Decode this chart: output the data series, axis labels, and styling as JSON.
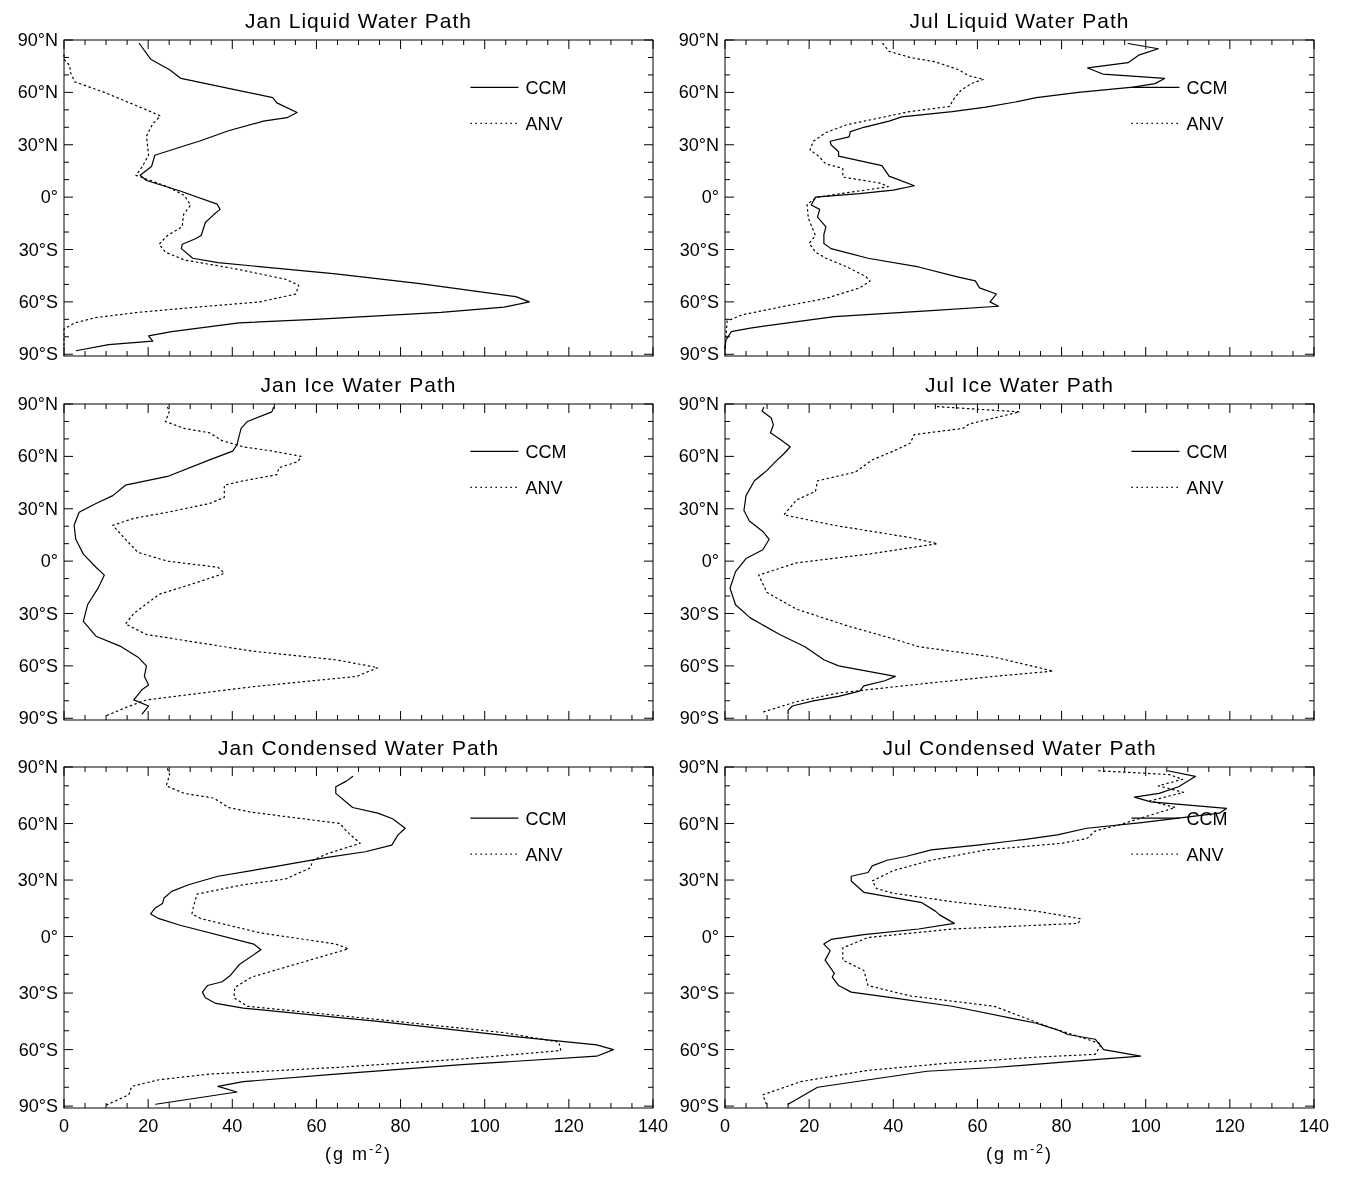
{
  "chart_data": [
    {
      "type": "line",
      "title": "Jan Liquid Water Path",
      "xlim": [
        0,
        140
      ],
      "ylim": [
        -91,
        90
      ],
      "tick_labels": "y",
      "legend": "top right",
      "xticks": [
        0,
        {
          "value": 5,
          "label": null
        },
        {
          "value": 10,
          "label": null
        },
        {
          "value": 15,
          "label": null
        },
        20,
        {
          "value": 25,
          "label": null
        },
        {
          "value": 30,
          "label": null
        },
        {
          "value": 35,
          "label": null
        },
        40,
        {
          "value": 45,
          "label": null
        },
        {
          "value": 50,
          "label": null
        },
        {
          "value": 55,
          "label": null
        },
        60,
        {
          "value": 65,
          "label": null
        },
        {
          "value": 70,
          "label": null
        },
        {
          "value": 75,
          "label": null
        },
        80,
        {
          "value": 85,
          "label": null
        },
        {
          "value": 90,
          "label": null
        },
        {
          "value": 95,
          "label": null
        },
        100,
        {
          "value": 105,
          "label": null
        },
        {
          "value": 110,
          "label": null
        },
        {
          "value": 115,
          "label": null
        },
        120,
        {
          "value": 125,
          "label": null
        },
        {
          "value": 130,
          "label": null
        },
        {
          "value": 135,
          "label": null
        },
        140
      ],
      "yticks": [
        {
          "value": -90,
          "label": "90°S"
        },
        {
          "value": -80,
          "label": null
        },
        {
          "value": -70,
          "label": null
        },
        {
          "value": -60,
          "label": "60°S"
        },
        {
          "value": -50,
          "label": null
        },
        {
          "value": -40,
          "label": null
        },
        {
          "value": -30,
          "label": "30°S"
        },
        {
          "value": -20,
          "label": null
        },
        {
          "value": -10,
          "label": null
        },
        {
          "value": 0,
          "label": "0°"
        },
        {
          "value": 10,
          "label": null
        },
        {
          "value": 20,
          "label": null
        },
        {
          "value": 30,
          "label": "30°N"
        },
        {
          "value": 40,
          "label": null
        },
        {
          "value": 50,
          "label": null
        },
        {
          "value": 60,
          "label": "60°N"
        },
        {
          "value": 70,
          "label": null
        },
        {
          "value": 80,
          "label": null
        },
        {
          "value": 90,
          "label": "90°N"
        }
      ],
      "series": [
        {
          "name": "CCM",
          "color": "#000000",
          "line_style": "solid",
          "x": [
            17.9,
            20.6,
            25.1,
            27.8,
            49.6,
            50.6,
            55.4,
            53,
            47.4,
            39.1,
            32.1,
            29.4,
            21.6,
            20.8,
            18.1,
            19.6,
            27.6,
            36.4,
            37.1,
            35.6,
            33.6,
            32.6,
            31.1,
            28.1,
            27.9,
            30.6,
            36.6,
            64.6,
            84.6,
            107.4,
            110.6,
            104.6,
            89.6,
            59.6,
            41.6,
            25.6,
            20.1,
            21.1,
            10.6,
            2.9
          ],
          "values": [
            88,
            79,
            73,
            68,
            57,
            54,
            48.5,
            45.5,
            43.5,
            38,
            32,
            30,
            24,
            17.5,
            12.5,
            9.5,
            3.5,
            -4,
            -7,
            -10,
            -14.5,
            -22,
            -24,
            -27,
            -29.5,
            -35,
            -37.5,
            -44,
            -49.5,
            -57,
            -60,
            -63,
            -66,
            -70,
            -72,
            -77,
            -79.5,
            -82.5,
            -84.5,
            -88
          ]
        },
        {
          "name": "ANV",
          "color": "#000000",
          "line_style": "dotted",
          "x": [
            0,
            0,
            1.3,
            1.6,
            2.6,
            9.6,
            19.1,
            22.9,
            21.1,
            19.6,
            20.1,
            18.6,
            17.1,
            24.6,
            28.6,
            30.1,
            28.4,
            28.1,
            24.6,
            22.6,
            24.1,
            28.6,
            40.6,
            52.6,
            55.8,
            55.1,
            46.6,
            31.6,
            17.6,
            7.6,
            2.6,
            0,
            0
          ],
          "values": [
            81.5,
            79,
            75.5,
            71,
            66,
            60,
            50.5,
            46.5,
            42,
            35,
            24,
            17.5,
            12.5,
            6,
            1,
            -4.5,
            -10,
            -17,
            -22,
            -27,
            -31.5,
            -36,
            -41,
            -47,
            -50.5,
            -55.5,
            -60,
            -63,
            -66,
            -69,
            -72,
            -75.5,
            -86.5
          ]
        }
      ]
    },
    {
      "type": "line",
      "title": "Jul Liquid Water Path",
      "xlim": [
        0,
        140
      ],
      "ylim": [
        -91,
        90
      ],
      "tick_labels": "y",
      "legend": "top right",
      "xticks": [
        0,
        {
          "value": 5,
          "label": null
        },
        {
          "value": 10,
          "label": null
        },
        {
          "value": 15,
          "label": null
        },
        20,
        {
          "value": 25,
          "label": null
        },
        {
          "value": 30,
          "label": null
        },
        {
          "value": 35,
          "label": null
        },
        40,
        {
          "value": 45,
          "label": null
        },
        {
          "value": 50,
          "label": null
        },
        {
          "value": 55,
          "label": null
        },
        60,
        {
          "value": 65,
          "label": null
        },
        {
          "value": 70,
          "label": null
        },
        {
          "value": 75,
          "label": null
        },
        80,
        {
          "value": 85,
          "label": null
        },
        {
          "value": 90,
          "label": null
        },
        {
          "value": 95,
          "label": null
        },
        100,
        {
          "value": 105,
          "label": null
        },
        {
          "value": 110,
          "label": null
        },
        {
          "value": 115,
          "label": null
        },
        120,
        {
          "value": 125,
          "label": null
        },
        {
          "value": 130,
          "label": null
        },
        {
          "value": 135,
          "label": null
        },
        140
      ],
      "yticks": [
        {
          "value": -90,
          "label": "90°S"
        },
        {
          "value": -80,
          "label": null
        },
        {
          "value": -70,
          "label": null
        },
        {
          "value": -60,
          "label": "60°S"
        },
        {
          "value": -50,
          "label": null
        },
        {
          "value": -40,
          "label": null
        },
        {
          "value": -30,
          "label": "30°S"
        },
        {
          "value": -20,
          "label": null
        },
        {
          "value": -10,
          "label": null
        },
        {
          "value": 0,
          "label": "0°"
        },
        {
          "value": 10,
          "label": null
        },
        {
          "value": 20,
          "label": null
        },
        {
          "value": 30,
          "label": "30°N"
        },
        {
          "value": 40,
          "label": null
        },
        {
          "value": 50,
          "label": null
        },
        {
          "value": 60,
          "label": "60°N"
        },
        {
          "value": 70,
          "label": null
        },
        {
          "value": 80,
          "label": null
        },
        {
          "value": 90,
          "label": "90°N"
        }
      ],
      "series": [
        {
          "name": "CCM",
          "color": "#000000",
          "line_style": "solid",
          "x": [
            95.8,
            103,
            98.5,
            95.8,
            86.2,
            89.8,
            104.5,
            102.2,
            97,
            84,
            74,
            69,
            62,
            54,
            42,
            39,
            33,
            29.8,
            29.5,
            25,
            25.2,
            27,
            27,
            37.3,
            39,
            45,
            40,
            32,
            21.5,
            20.5,
            22.5,
            22,
            24,
            23.5,
            23.5,
            25.2,
            34,
            46,
            55,
            59.5,
            60.5,
            64.5,
            63,
            65,
            49,
            26,
            6,
            1.5,
            0.2,
            0
          ],
          "values": [
            88,
            85,
            81.5,
            77,
            74,
            70.5,
            68,
            65,
            63,
            60,
            57,
            54.5,
            51.5,
            49,
            46,
            43.5,
            40,
            37.5,
            34.5,
            32,
            30,
            26,
            23.5,
            18,
            12,
            6.5,
            4,
            2,
            0,
            -4.5,
            -7,
            -11.5,
            -17,
            -21.5,
            -26.5,
            -29.5,
            -35,
            -40,
            -45.5,
            -48,
            -52,
            -55.5,
            -60,
            -62.5,
            -65,
            -68.5,
            -75,
            -77,
            -82,
            -86.5
          ]
        },
        {
          "name": "ANV",
          "color": "#000000",
          "line_style": "dotted",
          "x": [
            37.5,
            39,
            44,
            50,
            55.5,
            58,
            61.5,
            58.5,
            56,
            54,
            53.5,
            44,
            29,
            24,
            21,
            20.2,
            22,
            24,
            28,
            28,
            37,
            38.8,
            29,
            22,
            19.5,
            19.8,
            21.5,
            20,
            21.5,
            24,
            29,
            33.5,
            34.5,
            32,
            24,
            13,
            4,
            0.5,
            0
          ],
          "values": [
            88,
            83.5,
            80,
            77.5,
            73,
            69.5,
            67.5,
            65,
            61,
            55,
            52,
            49,
            41.5,
            37,
            32,
            27,
            24,
            19,
            16.5,
            11.5,
            8,
            6,
            2.5,
            0,
            -4,
            -12,
            -22,
            -26.5,
            -31.5,
            -35,
            -40,
            -45.5,
            -48,
            -52,
            -58,
            -63,
            -67.5,
            -71,
            -86.5
          ]
        }
      ]
    },
    {
      "type": "line",
      "title": "Jan Ice Water Path",
      "xlim": [
        0,
        140
      ],
      "ylim": [
        -91,
        90
      ],
      "tick_labels": "y",
      "legend": "top right",
      "xticks": [
        0,
        {
          "value": 5,
          "label": null
        },
        {
          "value": 10,
          "label": null
        },
        {
          "value": 15,
          "label": null
        },
        20,
        {
          "value": 25,
          "label": null
        },
        {
          "value": 30,
          "label": null
        },
        {
          "value": 35,
          "label": null
        },
        40,
        {
          "value": 45,
          "label": null
        },
        {
          "value": 50,
          "label": null
        },
        {
          "value": 55,
          "label": null
        },
        60,
        {
          "value": 65,
          "label": null
        },
        {
          "value": 70,
          "label": null
        },
        {
          "value": 75,
          "label": null
        },
        80,
        {
          "value": 85,
          "label": null
        },
        {
          "value": 90,
          "label": null
        },
        {
          "value": 95,
          "label": null
        },
        100,
        {
          "value": 105,
          "label": null
        },
        {
          "value": 110,
          "label": null
        },
        {
          "value": 115,
          "label": null
        },
        120,
        {
          "value": 125,
          "label": null
        },
        {
          "value": 130,
          "label": null
        },
        {
          "value": 135,
          "label": null
        },
        140
      ],
      "yticks": [
        {
          "value": -90,
          "label": "90°S"
        },
        {
          "value": -80,
          "label": null
        },
        {
          "value": -70,
          "label": null
        },
        {
          "value": -60,
          "label": "60°S"
        },
        {
          "value": -50,
          "label": null
        },
        {
          "value": -40,
          "label": null
        },
        {
          "value": -30,
          "label": "30°S"
        },
        {
          "value": -20,
          "label": null
        },
        {
          "value": -10,
          "label": null
        },
        {
          "value": 0,
          "label": "0°"
        },
        {
          "value": 10,
          "label": null
        },
        {
          "value": 20,
          "label": null
        },
        {
          "value": 30,
          "label": "30°N"
        },
        {
          "value": 40,
          "label": null
        },
        {
          "value": 50,
          "label": null
        },
        {
          "value": 60,
          "label": "60°N"
        },
        {
          "value": 70,
          "label": null
        },
        {
          "value": 80,
          "label": null
        },
        {
          "value": 90,
          "label": "90°N"
        }
      ],
      "series": [
        {
          "name": "CCM",
          "color": "#000000",
          "line_style": "solid",
          "x": [
            49.8,
            49.4,
            43.6,
            42.1,
            41.6,
            41.1,
            40.1,
            34.6,
            24.6,
            14.6,
            11.6,
            7.6,
            3.6,
            2.4,
            2.8,
            4.6,
            7.6,
            9.6,
            8.1,
            5.6,
            4.6,
            7.6,
            13.6,
            17.6,
            19.6,
            19.1,
            20.1,
            18.6,
            16.6,
            20.1,
            18.6
          ],
          "values": [
            88,
            85.5,
            80,
            76,
            71.5,
            66.5,
            63,
            58,
            48.5,
            43.5,
            37.5,
            33,
            28,
            20.5,
            12.5,
            4,
            -3.5,
            -8,
            -15.5,
            -25,
            -34.5,
            -43,
            -49,
            -55,
            -60,
            -66,
            -71,
            -73.5,
            -79.5,
            -83,
            -87.5
          ]
        },
        {
          "name": "ANV",
          "color": "#000000",
          "line_style": "dotted",
          "x": [
            24.6,
            25.1,
            24.1,
            28.6,
            34.6,
            37.6,
            42.6,
            49.6,
            56.4,
            55.6,
            51.1,
            50.6,
            42.6,
            38.1,
            38.1,
            34.6,
            24.6,
            16.6,
            11.6,
            14.6,
            17.6,
            24.6,
            36.6,
            38.1,
            30.6,
            22.6,
            16.6,
            14.6,
            19.6,
            44.6,
            64.6,
            74.6,
            69.6,
            44.6,
            19.6,
            15.6,
            9.6
          ],
          "values": [
            88,
            86,
            80,
            76,
            73.5,
            69,
            65.5,
            63,
            60,
            57,
            53.5,
            49.5,
            46,
            43.5,
            36.5,
            33,
            28,
            24.5,
            20.5,
            12.5,
            5,
            0,
            -3.5,
            -7,
            -13,
            -19,
            -30,
            -36,
            -42,
            -51.5,
            -56.5,
            -61,
            -66,
            -72,
            -79.5,
            -83,
            -89
          ]
        }
      ]
    },
    {
      "type": "line",
      "title": "Jul Ice Water Path",
      "xlim": [
        0,
        140
      ],
      "ylim": [
        -91,
        90
      ],
      "tick_labels": "y",
      "legend": "top right",
      "xticks": [
        0,
        {
          "value": 5,
          "label": null
        },
        {
          "value": 10,
          "label": null
        },
        {
          "value": 15,
          "label": null
        },
        20,
        {
          "value": 25,
          "label": null
        },
        {
          "value": 30,
          "label": null
        },
        {
          "value": 35,
          "label": null
        },
        40,
        {
          "value": 45,
          "label": null
        },
        {
          "value": 50,
          "label": null
        },
        {
          "value": 55,
          "label": null
        },
        60,
        {
          "value": 65,
          "label": null
        },
        {
          "value": 70,
          "label": null
        },
        {
          "value": 75,
          "label": null
        },
        80,
        {
          "value": 85,
          "label": null
        },
        {
          "value": 90,
          "label": null
        },
        {
          "value": 95,
          "label": null
        },
        100,
        {
          "value": 105,
          "label": null
        },
        {
          "value": 110,
          "label": null
        },
        {
          "value": 115,
          "label": null
        },
        120,
        {
          "value": 125,
          "label": null
        },
        {
          "value": 130,
          "label": null
        },
        {
          "value": 135,
          "label": null
        },
        140
      ],
      "yticks": [
        {
          "value": -90,
          "label": "90°S"
        },
        {
          "value": -80,
          "label": null
        },
        {
          "value": -70,
          "label": null
        },
        {
          "value": -60,
          "label": "60°S"
        },
        {
          "value": -50,
          "label": null
        },
        {
          "value": -40,
          "label": null
        },
        {
          "value": -30,
          "label": "30°S"
        },
        {
          "value": -20,
          "label": null
        },
        {
          "value": -10,
          "label": null
        },
        {
          "value": 0,
          "label": "0°"
        },
        {
          "value": 10,
          "label": null
        },
        {
          "value": 20,
          "label": null
        },
        {
          "value": 30,
          "label": "30°N"
        },
        {
          "value": 40,
          "label": null
        },
        {
          "value": 50,
          "label": null
        },
        {
          "value": 60,
          "label": "60°N"
        },
        {
          "value": 70,
          "label": null
        },
        {
          "value": 80,
          "label": null
        },
        {
          "value": 90,
          "label": "90°N"
        }
      ],
      "series": [
        {
          "name": "CCM",
          "color": "#000000",
          "line_style": "solid",
          "x": [
            9.2,
            8.8,
            11,
            11.5,
            10.8,
            13,
            15.5,
            14,
            12,
            10,
            7,
            5,
            4.5,
            5.8,
            9,
            10.5,
            9,
            5,
            2.5,
            1.2,
            2.5,
            6,
            13,
            19,
            23.5,
            27,
            40.5,
            38,
            33,
            32,
            27,
            21,
            16,
            15,
            15
          ],
          "values": [
            88,
            86,
            82,
            78,
            73.5,
            70,
            65.5,
            61.5,
            57,
            52,
            46,
            37.5,
            29,
            23,
            17,
            12.5,
            6.5,
            1.5,
            -6,
            -15.5,
            -25,
            -32.5,
            -42,
            -49,
            -56.5,
            -60,
            -66,
            -68.5,
            -71.5,
            -74.5,
            -77.5,
            -80,
            -83,
            -85.5,
            -87.5
          ]
        },
        {
          "name": "ANV",
          "color": "#000000",
          "line_style": "dotted",
          "x": [
            50.5,
            70,
            64,
            58,
            56.5,
            45,
            44,
            40,
            35,
            31,
            22,
            21.5,
            17,
            14,
            26,
            44,
            50.5,
            34,
            17,
            8,
            10,
            17,
            29,
            40,
            46,
            64,
            78,
            64,
            44,
            27,
            17,
            9
          ],
          "values": [
            88.5,
            85.5,
            82,
            78.5,
            76,
            72.5,
            67.5,
            63,
            58,
            51,
            46,
            40,
            35,
            26.5,
            20.5,
            13.5,
            10,
            4,
            -1,
            -8,
            -18,
            -27.5,
            -37,
            -44.5,
            -49,
            -55,
            -63,
            -66,
            -71,
            -75.5,
            -80.5,
            -86.5
          ]
        }
      ]
    },
    {
      "type": "line",
      "title": "Jan Condensed Water Path",
      "xlabel": "(g m$^{-2}$)",
      "xlim": [
        0,
        140
      ],
      "ylim": [
        -91,
        90
      ],
      "legend": "top right",
      "xticks": [
        {
          "value": 0,
          "label": "0"
        },
        {
          "value": 5,
          "label": null
        },
        {
          "value": 10,
          "label": null
        },
        {
          "value": 15,
          "label": null
        },
        {
          "value": 20,
          "label": "20"
        },
        {
          "value": 25,
          "label": null
        },
        {
          "value": 30,
          "label": null
        },
        {
          "value": 35,
          "label": null
        },
        {
          "value": 40,
          "label": "40"
        },
        {
          "value": 45,
          "label": null
        },
        {
          "value": 50,
          "label": null
        },
        {
          "value": 55,
          "label": null
        },
        {
          "value": 60,
          "label": "60"
        },
        {
          "value": 65,
          "label": null
        },
        {
          "value": 70,
          "label": null
        },
        {
          "value": 75,
          "label": null
        },
        {
          "value": 80,
          "label": "80"
        },
        {
          "value": 85,
          "label": null
        },
        {
          "value": 90,
          "label": null
        },
        {
          "value": 95,
          "label": null
        },
        {
          "value": 100,
          "label": "100"
        },
        {
          "value": 105,
          "label": null
        },
        {
          "value": 110,
          "label": null
        },
        {
          "value": 115,
          "label": null
        },
        {
          "value": 120,
          "label": "120"
        },
        {
          "value": 125,
          "label": null
        },
        {
          "value": 130,
          "label": null
        },
        {
          "value": 135,
          "label": null
        },
        {
          "value": 140,
          "label": "140"
        }
      ],
      "yticks": [
        {
          "value": -90,
          "label": "90°S"
        },
        {
          "value": -80,
          "label": null
        },
        {
          "value": -70,
          "label": null
        },
        {
          "value": -60,
          "label": "60°S"
        },
        {
          "value": -50,
          "label": null
        },
        {
          "value": -40,
          "label": null
        },
        {
          "value": -30,
          "label": "30°S"
        },
        {
          "value": -20,
          "label": null
        },
        {
          "value": -10,
          "label": null
        },
        {
          "value": 0,
          "label": "0°"
        },
        {
          "value": 10,
          "label": null
        },
        {
          "value": 20,
          "label": null
        },
        {
          "value": 30,
          "label": "30°N"
        },
        {
          "value": 40,
          "label": null
        },
        {
          "value": 50,
          "label": null
        },
        {
          "value": 60,
          "label": "60°N"
        },
        {
          "value": 70,
          "label": null
        },
        {
          "value": 80,
          "label": null
        },
        {
          "value": 90,
          "label": "90°N"
        }
      ],
      "series": [
        {
          "name": "CCM",
          "color": "#000000",
          "line_style": "solid",
          "x": [
            68.6,
            67.1,
            64.6,
            64.6,
            68.6,
            74.6,
            78.1,
            81.1,
            79.4,
            77.9,
            71.6,
            62.6,
            51.1,
            44.6,
            36.6,
            29.6,
            25.6,
            23.8,
            23.4,
            21.6,
            20.6,
            22.6,
            27.6,
            45.1,
            46.8,
            41.6,
            39.6,
            37.6,
            34.1,
            32.9,
            33.6,
            36.1,
            42.6,
            74.6,
            104.6,
            126.6,
            130.6,
            126.6,
            94.6,
            64.6,
            42.6,
            36.6,
            41.1,
            21.8
          ],
          "values": [
            85,
            82.5,
            79.5,
            76,
            68.5,
            65.5,
            62.5,
            57.5,
            54,
            48.5,
            45,
            42,
            37.5,
            35,
            32,
            27.5,
            24,
            20.5,
            17.5,
            15,
            12,
            9.5,
            6,
            -4,
            -7,
            -15,
            -20.5,
            -24,
            -26,
            -29.5,
            -32.5,
            -35.5,
            -38,
            -45,
            -52.5,
            -57.5,
            -60,
            -63.5,
            -68,
            -73,
            -77,
            -79.5,
            -82.5,
            -89
          ]
        },
        {
          "name": "ANV",
          "color": "#000000",
          "line_style": "dotted",
          "x": [
            24.6,
            25.1,
            24.3,
            28.6,
            35.6,
            39.1,
            44.6,
            65.6,
            67.1,
            70.4,
            62.6,
            59.1,
            58.6,
            52.6,
            42.6,
            31.6,
            30.8,
            30.4,
            32.6,
            46.6,
            64.6,
            67.6,
            54.6,
            44.6,
            40.6,
            40.4,
            43.6,
            74.6,
            104.6,
            117.6,
            118.1,
            94.6,
            64.6,
            34.6,
            22.6,
            16.1,
            15.4,
            10
          ],
          "values": [
            89,
            86,
            80,
            76,
            73.5,
            68.5,
            66,
            60,
            56,
            49.5,
            44,
            40.5,
            36.5,
            30.5,
            27.5,
            22.5,
            16,
            12,
            9.5,
            2,
            -4,
            -6.5,
            -15,
            -21.5,
            -27,
            -32.5,
            -37,
            -44,
            -51,
            -56,
            -60.5,
            -65,
            -69.5,
            -73,
            -76,
            -79.5,
            -84,
            -89.5
          ]
        }
      ]
    },
    {
      "type": "line",
      "title": "Jul Condensed Water Path",
      "xlabel": "(g m$^{-2}$)",
      "xlim": [
        0,
        140
      ],
      "ylim": [
        -91,
        90
      ],
      "legend": "top right",
      "xticks": [
        {
          "value": 0,
          "label": "0"
        },
        {
          "value": 5,
          "label": null
        },
        {
          "value": 10,
          "label": null
        },
        {
          "value": 15,
          "label": null
        },
        {
          "value": 20,
          "label": "20"
        },
        {
          "value": 25,
          "label": null
        },
        {
          "value": 30,
          "label": null
        },
        {
          "value": 35,
          "label": null
        },
        {
          "value": 40,
          "label": "40"
        },
        {
          "value": 45,
          "label": null
        },
        {
          "value": 50,
          "label": null
        },
        {
          "value": 55,
          "label": null
        },
        {
          "value": 60,
          "label": "60"
        },
        {
          "value": 65,
          "label": null
        },
        {
          "value": 70,
          "label": null
        },
        {
          "value": 75,
          "label": null
        },
        {
          "value": 80,
          "label": "80"
        },
        {
          "value": 85,
          "label": null
        },
        {
          "value": 90,
          "label": null
        },
        {
          "value": 95,
          "label": null
        },
        {
          "value": 100,
          "label": "100"
        },
        {
          "value": 105,
          "label": null
        },
        {
          "value": 110,
          "label": null
        },
        {
          "value": 115,
          "label": null
        },
        {
          "value": 120,
          "label": "120"
        },
        {
          "value": 125,
          "label": null
        },
        {
          "value": 130,
          "label": null
        },
        {
          "value": 135,
          "label": null
        },
        {
          "value": 140,
          "label": "140"
        }
      ],
      "yticks": [
        {
          "value": -90,
          "label": "90°S"
        },
        {
          "value": -80,
          "label": null
        },
        {
          "value": -70,
          "label": null
        },
        {
          "value": -60,
          "label": "60°S"
        },
        {
          "value": -50,
          "label": null
        },
        {
          "value": -40,
          "label": null
        },
        {
          "value": -30,
          "label": "30°S"
        },
        {
          "value": -20,
          "label": null
        },
        {
          "value": -10,
          "label": null
        },
        {
          "value": 0,
          "label": "0°"
        },
        {
          "value": 10,
          "label": null
        },
        {
          "value": 20,
          "label": null
        },
        {
          "value": 30,
          "label": "30°N"
        },
        {
          "value": 40,
          "label": null
        },
        {
          "value": 50,
          "label": null
        },
        {
          "value": 60,
          "label": "60°N"
        },
        {
          "value": 70,
          "label": null
        },
        {
          "value": 80,
          "label": null
        },
        {
          "value": 90,
          "label": "90°N"
        }
      ],
      "series": [
        {
          "name": "CCM",
          "color": "#000000",
          "line_style": "solid",
          "x": [
            105.2,
            111.8,
            107.8,
            103.2,
            97.3,
            101.2,
            119.2,
            117.5,
            99,
            86,
            79,
            71,
            60,
            49,
            43,
            38.5,
            35,
            34,
            30,
            30,
            33,
            46.8,
            50,
            51,
            54.5,
            46,
            33,
            25.2,
            23.5,
            25,
            23.8,
            26,
            25.5,
            27,
            30,
            40,
            54,
            74,
            79,
            81.5,
            88,
            90,
            98.8,
            84,
            64,
            48,
            22,
            15
          ],
          "values": [
            88,
            85,
            79.5,
            76,
            74,
            71.5,
            68,
            65.5,
            60.5,
            57.5,
            54,
            51.5,
            48.5,
            46,
            42.5,
            40.5,
            37.5,
            34,
            32,
            29.5,
            23.5,
            18,
            13.5,
            11.5,
            7,
            4,
            1,
            -1.5,
            -4,
            -7.5,
            -12.5,
            -19.5,
            -21.5,
            -26,
            -29.5,
            -32.5,
            -37,
            -46,
            -49.5,
            -52,
            -54.5,
            -60,
            -63.5,
            -66,
            -69.5,
            -71.5,
            -80,
            -89
          ]
        },
        {
          "name": "ANV",
          "color": "#000000",
          "line_style": "dotted",
          "x": [
            88.8,
            105.5,
            108.8,
            103,
            109,
            101,
            107,
            94,
            88,
            86,
            80,
            62,
            49,
            40,
            35,
            36,
            40,
            54,
            74,
            84.5,
            84,
            54,
            34,
            28,
            28,
            33,
            34,
            44,
            64,
            77,
            89.5,
            88,
            74,
            54,
            34,
            18,
            9,
            10
          ],
          "values": [
            88,
            86,
            83.5,
            80,
            76.5,
            72,
            68.5,
            59.5,
            56,
            52,
            49.5,
            46,
            40.5,
            35,
            29.5,
            25.5,
            23,
            18.5,
            13.5,
            9.5,
            7,
            4,
            -0.5,
            -6,
            -12.5,
            -18,
            -26,
            -31.5,
            -37,
            -48,
            -57,
            -62.5,
            -64,
            -67,
            -71,
            -77,
            -84,
            -90
          ]
        }
      ]
    }
  ]
}
